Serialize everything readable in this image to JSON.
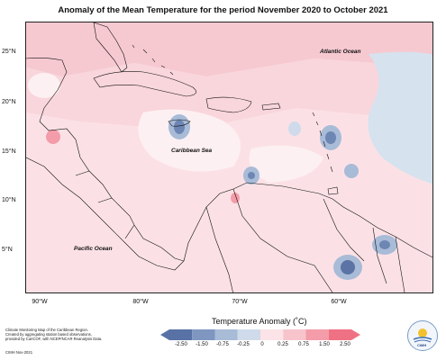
{
  "title": "Anomaly of the Mean Temperature for the period November 2020 to October 2021",
  "map": {
    "latitude_labels": [
      "25°N",
      "20°N",
      "15°N",
      "10°N",
      "5°N"
    ],
    "longitude_labels": [
      "90°W",
      "80°W",
      "70°W",
      "60°W"
    ],
    "ocean_labels": {
      "atlantic": "Atlantic Ocean",
      "caribbean": "Caribbean Sea",
      "pacific": "Pacific Ocean"
    }
  },
  "legend": {
    "title": "Temperature Anomaly (˚C)",
    "ticks": [
      "-2.50",
      "-1.50",
      "-0.75",
      "-0.25",
      "0",
      "0.25",
      "0.75",
      "1.50",
      "2.50"
    ],
    "colors": [
      "#5872a6",
      "#7f97c0",
      "#a8bbd7",
      "#cfdbea",
      "#ffffff",
      "#fbe3e7",
      "#f7c4cc",
      "#f49ca9",
      "#ef7284"
    ]
  },
  "credits": {
    "line1": "Climate Monitoring Map of the Caribbean Region.",
    "line2": "Created by aggregating station based observations,",
    "line3": "provided by CariCOF, with NCEP/NCAR Reanalysis Data.",
    "line4": "CIMH Nov-2021",
    "logo": "CIMH"
  },
  "icons": {
    "logo": "cimh-logo-icon",
    "north": "compass-icon"
  }
}
